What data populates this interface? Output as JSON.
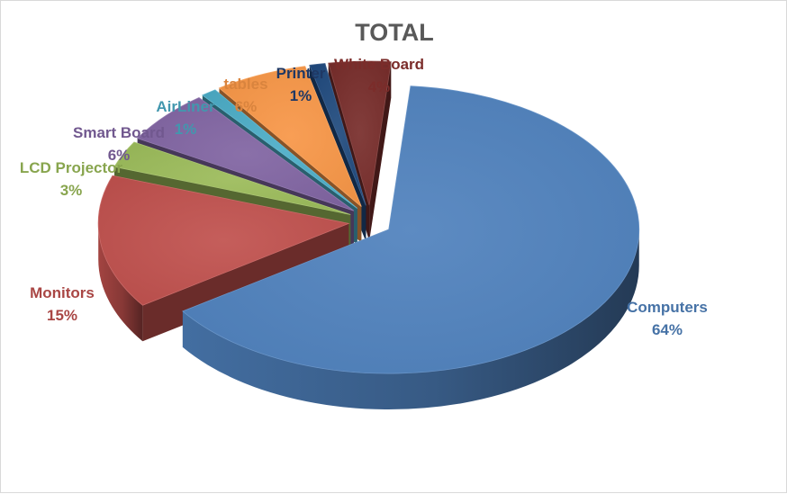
{
  "chart_data": {
    "type": "pie",
    "title": "TOTAL",
    "three_d": true,
    "exploded": true,
    "legend": "none",
    "slices": [
      {
        "name": "Computers",
        "value": 64,
        "label": "64%",
        "color": "#4f81bd"
      },
      {
        "name": "Monitors",
        "value": 15,
        "label": "15%",
        "color": "#c0504d"
      },
      {
        "name": "LCD Projector",
        "value": 3,
        "label": "3%",
        "color": "#9bbb59"
      },
      {
        "name": "Smart Board",
        "value": 6,
        "label": "6%",
        "color": "#8064a2"
      },
      {
        "name": "AirLiner",
        "value": 1,
        "label": "1%",
        "color": "#4bacc6"
      },
      {
        "name": "tables",
        "value": 6,
        "label": "6%",
        "color": "#f79646"
      },
      {
        "name": "Printer",
        "value": 1,
        "label": "1%",
        "color": "#1f497d"
      },
      {
        "name": "White Board",
        "value": 4,
        "label": "4%",
        "color": "#772c2a"
      }
    ]
  }
}
